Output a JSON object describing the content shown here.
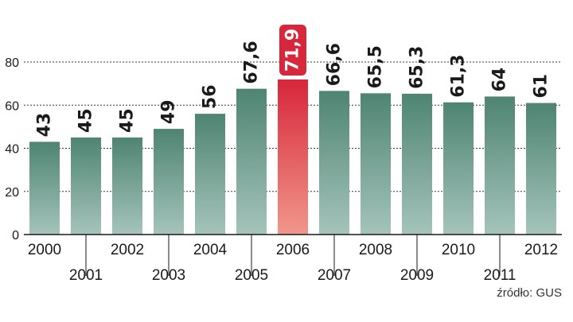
{
  "chart_data": {
    "type": "bar",
    "categories": [
      "2000",
      "2001",
      "2002",
      "2003",
      "2004",
      "2005",
      "2006",
      "2007",
      "2008",
      "2009",
      "2010",
      "2011",
      "2012"
    ],
    "values": [
      43,
      45,
      45,
      49,
      56,
      67.6,
      71.9,
      66.6,
      65.5,
      65.3,
      61.3,
      64,
      61
    ],
    "value_labels": [
      "43",
      "45",
      "45",
      "49",
      "56",
      "67,6",
      "71,9",
      "66,6",
      "65,5",
      "65,3",
      "61,3",
      "64",
      "61"
    ],
    "ylim": [
      0,
      80
    ],
    "yticks": [
      0,
      20,
      40,
      60,
      80
    ],
    "ytick_labels": [
      "0",
      "20",
      "40",
      "60",
      "80"
    ],
    "highlight_category": "2006",
    "grid": "horizontal dotted",
    "colors": {
      "bar_top": "#4e8472",
      "bar_bottom": "#a5c4bb",
      "highlight_top": "#d8263a",
      "highlight_bottom": "#f0978a",
      "label_highlight_bg": "#d8263a",
      "text": "#1a1a1a",
      "grid": "#333333"
    }
  },
  "source_note": "źródło: GUS"
}
